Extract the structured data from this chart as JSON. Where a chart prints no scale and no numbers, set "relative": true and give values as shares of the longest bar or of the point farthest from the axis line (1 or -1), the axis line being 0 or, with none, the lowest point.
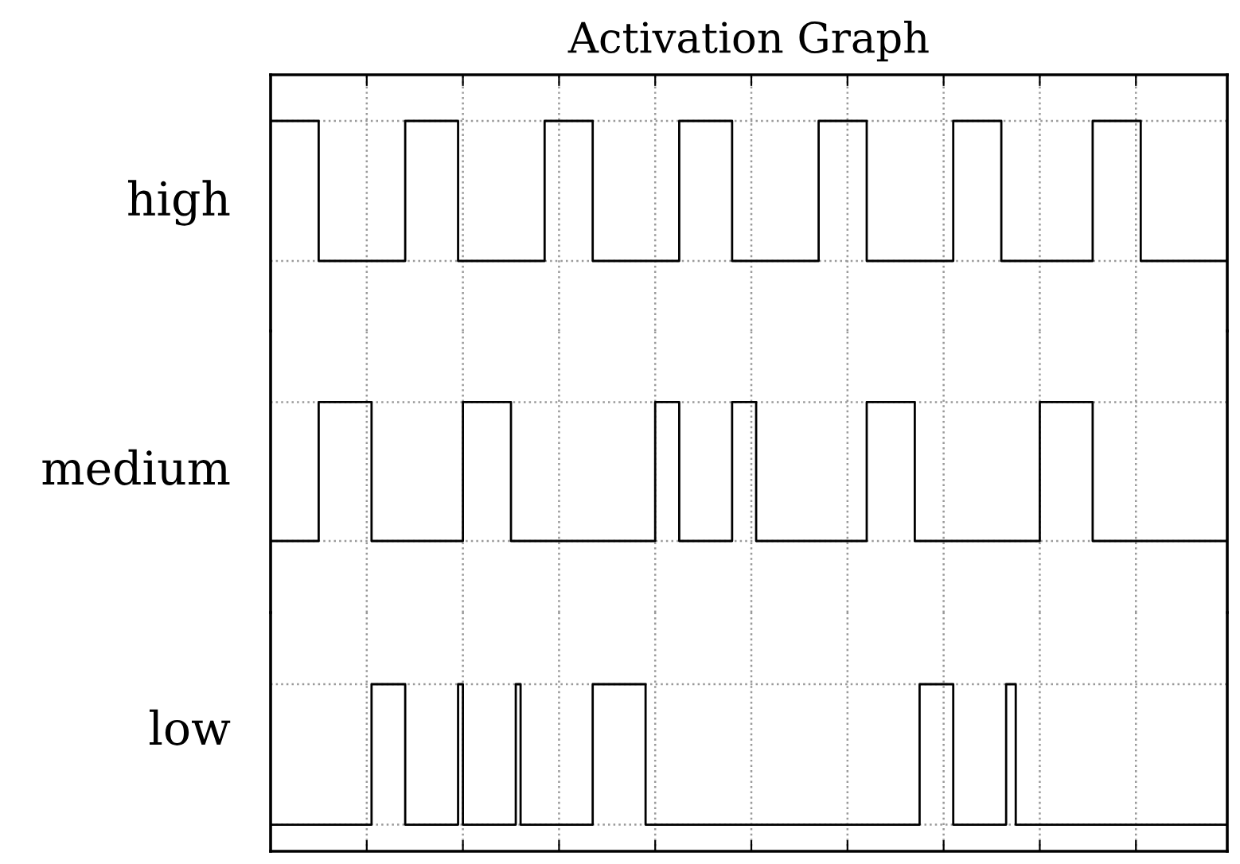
{
  "chart_data": [
    {
      "type": "step",
      "title": "Activation Graph",
      "ylabel": "high",
      "relative": true,
      "grid": true,
      "line_style": "solid",
      "marker": "none",
      "categories": [
        null,
        null,
        null,
        null,
        null,
        null,
        null,
        null,
        null,
        null,
        null,
        null,
        null,
        null,
        null,
        null,
        null,
        null,
        null,
        null,
        null,
        null,
        null,
        null,
        null,
        null,
        null,
        null,
        null,
        null,
        null,
        null,
        null,
        null,
        null,
        null,
        null,
        null,
        null,
        null,
        null,
        null,
        null,
        null,
        null,
        null,
        null,
        null,
        null,
        null,
        null,
        null,
        null,
        null,
        null,
        null,
        null,
        null,
        null,
        null,
        null,
        null,
        null,
        null,
        null,
        null,
        null,
        null,
        null,
        null,
        null,
        null,
        null,
        null,
        null,
        null,
        null,
        null,
        null,
        null,
        null,
        null,
        null,
        null,
        null,
        null,
        null,
        null,
        null,
        null,
        null,
        null,
        null,
        null,
        null,
        null,
        null,
        null,
        null,
        null,
        null,
        null,
        null,
        null,
        null,
        null,
        null,
        null,
        null,
        null,
        null,
        null,
        null,
        null,
        null,
        null,
        null,
        null,
        null,
        null,
        null,
        null,
        null,
        null,
        null,
        null,
        null,
        null,
        null,
        null,
        null,
        null,
        null,
        null,
        null,
        null,
        null,
        null,
        null,
        null,
        null,
        null,
        null,
        null,
        null,
        null,
        null,
        null,
        null,
        null,
        null,
        null,
        null,
        null,
        null,
        null,
        null,
        null,
        null,
        null,
        null,
        null,
        null,
        null,
        null,
        null,
        null,
        null,
        null,
        null,
        null,
        null,
        null,
        null,
        null,
        null,
        null,
        null,
        null,
        null,
        null,
        null,
        null,
        null,
        null,
        null,
        null,
        null,
        null,
        null,
        null,
        null,
        null,
        null,
        null,
        null,
        null,
        null,
        null,
        null
      ],
      "series": [
        {
          "color": "#000000",
          "values": [
            1,
            1,
            1,
            1,
            1,
            1,
            1,
            1,
            1,
            1,
            0,
            0,
            0,
            0,
            0,
            0,
            0,
            0,
            0,
            0,
            0,
            0,
            0,
            0,
            0,
            0,
            0,
            0,
            1,
            1,
            1,
            1,
            1,
            1,
            1,
            1,
            1,
            1,
            1,
            0,
            0,
            0,
            0,
            0,
            0,
            0,
            0,
            0,
            0,
            0,
            0,
            0,
            0,
            0,
            0,
            0,
            0,
            1,
            1,
            1,
            1,
            1,
            1,
            1,
            1,
            1,
            1,
            0,
            0,
            0,
            0,
            0,
            0,
            0,
            0,
            0,
            0,
            0,
            0,
            0,
            0,
            0,
            0,
            0,
            0,
            1,
            1,
            1,
            1,
            1,
            1,
            1,
            1,
            1,
            1,
            1,
            0,
            0,
            0,
            0,
            0,
            0,
            0,
            0,
            0,
            0,
            0,
            0,
            0,
            0,
            0,
            0,
            0,
            0,
            1,
            1,
            1,
            1,
            1,
            1,
            1,
            1,
            1,
            1,
            0,
            0,
            0,
            0,
            0,
            0,
            0,
            0,
            0,
            0,
            0,
            0,
            0,
            0,
            0,
            0,
            0,
            0,
            1,
            1,
            1,
            1,
            1,
            1,
            1,
            1,
            1,
            1,
            0,
            0,
            0,
            0,
            0,
            0,
            0,
            0,
            0,
            0,
            0,
            0,
            0,
            0,
            0,
            0,
            0,
            0,
            0,
            1,
            1,
            1,
            1,
            1,
            1,
            1,
            1,
            1,
            1,
            0,
            0,
            0,
            0,
            0,
            0,
            0,
            0,
            0,
            0,
            0,
            0,
            0,
            0,
            0,
            0,
            0,
            0,
            1
          ]
        }
      ]
    },
    {
      "type": "step",
      "ylabel": "medium",
      "relative": true,
      "grid": true,
      "line_style": "solid",
      "marker": "none",
      "categories": [
        null,
        null,
        null,
        null,
        null,
        null,
        null,
        null,
        null,
        null,
        null,
        null,
        null,
        null,
        null,
        null,
        null,
        null,
        null,
        null,
        null,
        null,
        null,
        null,
        null,
        null,
        null,
        null,
        null,
        null,
        null,
        null,
        null,
        null,
        null,
        null,
        null,
        null,
        null,
        null,
        null,
        null,
        null,
        null,
        null,
        null,
        null,
        null,
        null,
        null,
        null,
        null,
        null,
        null,
        null,
        null,
        null,
        null,
        null,
        null,
        null,
        null,
        null,
        null,
        null,
        null,
        null,
        null,
        null,
        null,
        null,
        null,
        null,
        null,
        null,
        null,
        null,
        null,
        null,
        null,
        null,
        null,
        null,
        null,
        null,
        null,
        null,
        null,
        null,
        null,
        null,
        null,
        null,
        null,
        null,
        null,
        null,
        null,
        null,
        null,
        null,
        null,
        null,
        null,
        null,
        null,
        null,
        null,
        null,
        null,
        null,
        null,
        null,
        null,
        null,
        null,
        null,
        null,
        null,
        null,
        null,
        null,
        null,
        null,
        null,
        null,
        null,
        null,
        null,
        null,
        null,
        null,
        null,
        null,
        null,
        null,
        null,
        null,
        null,
        null,
        null,
        null,
        null,
        null,
        null,
        null,
        null,
        null,
        null,
        null,
        null,
        null,
        null,
        null,
        null,
        null,
        null,
        null,
        null,
        null,
        null,
        null,
        null,
        null,
        null,
        null,
        null,
        null,
        null,
        null,
        null,
        null,
        null,
        null,
        null,
        null,
        null,
        null,
        null,
        null,
        null,
        null,
        null,
        null,
        null,
        null,
        null,
        null,
        null,
        null,
        null,
        null,
        null,
        null,
        null,
        null,
        null,
        null,
        null,
        null
      ],
      "series": [
        {
          "color": "#000000",
          "values": [
            0,
            0,
            0,
            0,
            0,
            0,
            0,
            0,
            0,
            0,
            1,
            1,
            1,
            1,
            1,
            1,
            1,
            1,
            1,
            1,
            1,
            0,
            0,
            0,
            0,
            0,
            0,
            0,
            0,
            0,
            0,
            0,
            0,
            0,
            0,
            0,
            0,
            0,
            0,
            0,
            1,
            1,
            1,
            1,
            1,
            1,
            1,
            1,
            1,
            1,
            0,
            0,
            0,
            0,
            0,
            0,
            0,
            0,
            0,
            0,
            0,
            0,
            0,
            0,
            0,
            0,
            0,
            0,
            0,
            0,
            0,
            0,
            0,
            0,
            0,
            0,
            0,
            0,
            0,
            0,
            1,
            1,
            1,
            1,
            1,
            0,
            0,
            0,
            0,
            0,
            0,
            0,
            0,
            0,
            0,
            0,
            1,
            1,
            1,
            1,
            1,
            0,
            0,
            0,
            0,
            0,
            0,
            0,
            0,
            0,
            0,
            0,
            0,
            0,
            0,
            0,
            0,
            0,
            0,
            0,
            0,
            0,
            0,
            0,
            1,
            1,
            1,
            1,
            1,
            1,
            1,
            1,
            1,
            1,
            0,
            0,
            0,
            0,
            0,
            0,
            0,
            0,
            0,
            0,
            0,
            0,
            0,
            0,
            0,
            0,
            0,
            0,
            0,
            0,
            0,
            0,
            0,
            0,
            0,
            0,
            1,
            1,
            1,
            1,
            1,
            1,
            1,
            1,
            1,
            1,
            1,
            0,
            0,
            0,
            0,
            0,
            0,
            0,
            0,
            0,
            0,
            0,
            0,
            0,
            0,
            0,
            0,
            0,
            0,
            0,
            0,
            0,
            0,
            0,
            0,
            0,
            0,
            0,
            0,
            0
          ]
        }
      ]
    },
    {
      "type": "step",
      "ylabel": "low",
      "relative": true,
      "grid": true,
      "line_style": "solid",
      "marker": "none",
      "categories": [
        null,
        null,
        null,
        null,
        null,
        null,
        null,
        null,
        null,
        null,
        null,
        null,
        null,
        null,
        null,
        null,
        null,
        null,
        null,
        null,
        null,
        null,
        null,
        null,
        null,
        null,
        null,
        null,
        null,
        null,
        null,
        null,
        null,
        null,
        null,
        null,
        null,
        null,
        null,
        null,
        null,
        null,
        null,
        null,
        null,
        null,
        null,
        null,
        null,
        null,
        null,
        null,
        null,
        null,
        null,
        null,
        null,
        null,
        null,
        null,
        null,
        null,
        null,
        null,
        null,
        null,
        null,
        null,
        null,
        null,
        null,
        null,
        null,
        null,
        null,
        null,
        null,
        null,
        null,
        null,
        null,
        null,
        null,
        null,
        null,
        null,
        null,
        null,
        null,
        null,
        null,
        null,
        null,
        null,
        null,
        null,
        null,
        null,
        null,
        null,
        null,
        null,
        null,
        null,
        null,
        null,
        null,
        null,
        null,
        null,
        null,
        null,
        null,
        null,
        null,
        null,
        null,
        null,
        null,
        null,
        null,
        null,
        null,
        null,
        null,
        null,
        null,
        null,
        null,
        null,
        null,
        null,
        null,
        null,
        null,
        null,
        null,
        null,
        null,
        null,
        null,
        null,
        null,
        null,
        null,
        null,
        null,
        null,
        null,
        null,
        null,
        null,
        null,
        null,
        null,
        null,
        null,
        null,
        null,
        null,
        null,
        null,
        null,
        null,
        null,
        null,
        null,
        null,
        null,
        null,
        null,
        null,
        null,
        null,
        null,
        null,
        null,
        null,
        null,
        null,
        null,
        null,
        null,
        null,
        null,
        null,
        null,
        null,
        null,
        null,
        null,
        null,
        null,
        null,
        null,
        null,
        null,
        null,
        null,
        null
      ],
      "series": [
        {
          "color": "#000000",
          "values": [
            0,
            0,
            0,
            0,
            0,
            0,
            0,
            0,
            0,
            0,
            0,
            0,
            0,
            0,
            0,
            0,
            0,
            0,
            0,
            0,
            0,
            1,
            1,
            1,
            1,
            1,
            1,
            1,
            0,
            0,
            0,
            0,
            0,
            0,
            0,
            0,
            0,
            0,
            0,
            1,
            0,
            0,
            0,
            0,
            0,
            0,
            0,
            0,
            0,
            0,
            0,
            1,
            0,
            0,
            0,
            0,
            0,
            0,
            0,
            0,
            0,
            0,
            0,
            0,
            0,
            0,
            0,
            1,
            1,
            1,
            1,
            1,
            1,
            1,
            1,
            1,
            1,
            1,
            0,
            0,
            0,
            0,
            0,
            0,
            0,
            0,
            0,
            0,
            0,
            0,
            0,
            0,
            0,
            0,
            0,
            0,
            0,
            0,
            0,
            0,
            0,
            0,
            0,
            0,
            0,
            0,
            0,
            0,
            0,
            0,
            0,
            0,
            0,
            0,
            0,
            0,
            0,
            0,
            0,
            0,
            0,
            0,
            0,
            0,
            0,
            0,
            0,
            0,
            0,
            0,
            0,
            0,
            0,
            0,
            0,
            1,
            1,
            1,
            1,
            1,
            1,
            1,
            0,
            0,
            0,
            0,
            0,
            0,
            0,
            0,
            0,
            0,
            0,
            1,
            1,
            0,
            0,
            0,
            0,
            0,
            0,
            0,
            0,
            0,
            0,
            0,
            0,
            0,
            0,
            0,
            0,
            0,
            0,
            0,
            0,
            0,
            0,
            0,
            0,
            0,
            0,
            0,
            0,
            0,
            0,
            0,
            0,
            0,
            0,
            0,
            0,
            0,
            0,
            0,
            0,
            0,
            0,
            0,
            0,
            0
          ]
        }
      ]
    }
  ]
}
